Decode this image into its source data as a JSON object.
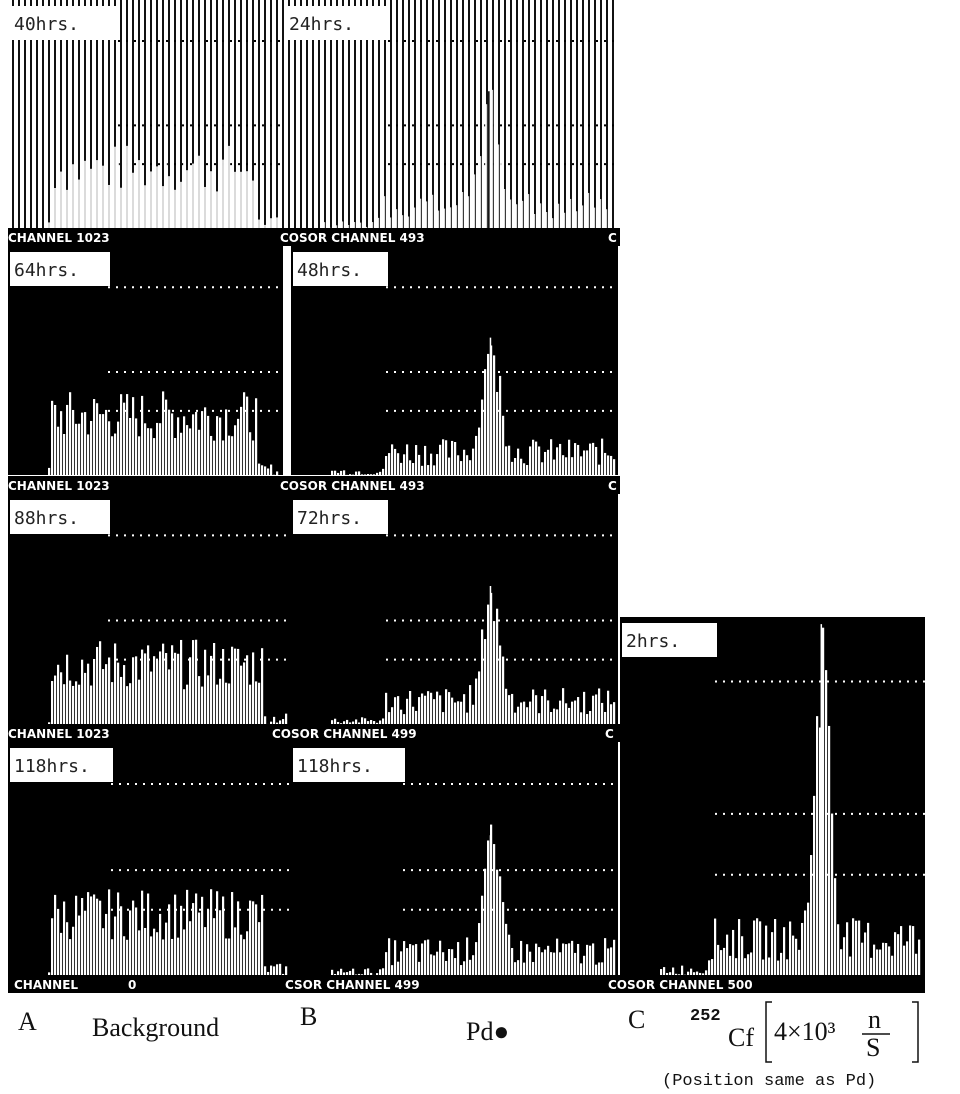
{
  "panels": [
    {
      "column": "A",
      "time": "40hrs."
    },
    {
      "column": "B",
      "time": "24hrs."
    },
    {
      "column": "A",
      "time": "64hrs."
    },
    {
      "column": "B",
      "time": "48hrs."
    },
    {
      "column": "A",
      "time": "88hrs."
    },
    {
      "column": "B",
      "time": "72hrs."
    },
    {
      "column": "A",
      "time": "118hrs."
    },
    {
      "column": "B",
      "time": "118hrs."
    },
    {
      "column": "C",
      "time": "2hrs."
    }
  ],
  "strips": [
    [
      "CHANNEL 1023",
      "COSOR CHANNEL 493",
      "C"
    ],
    [
      "CHANNEL 1023",
      "COSOR CHANNEL 493",
      "C"
    ],
    [
      "CHANNEL 1023",
      "COSOR CHANNEL 499",
      "C"
    ],
    [
      "CHANNEL",
      "0",
      "CSOR CHANNEL 499",
      "COSOR CHANNEL 500"
    ]
  ],
  "columns": [
    {
      "letter": "A",
      "label": "Background"
    },
    {
      "letter": "B",
      "label": "Pd●"
    },
    {
      "letter": "C",
      "isotope_mass": "252",
      "element": "Cf",
      "rate": "4×10³",
      "numerator": "n",
      "denominator": "S"
    }
  ],
  "note": "(Position same as Pd)"
}
